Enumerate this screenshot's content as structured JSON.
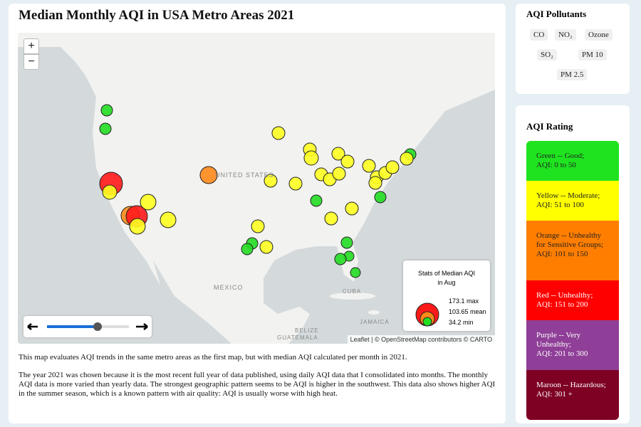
{
  "header": {
    "title": "Median Monthly AQI in USA Metro Areas 2021"
  },
  "map": {
    "zoom_in": "+",
    "zoom_out": "−",
    "labels": [
      "UNITED STATES",
      "MEXICO",
      "CUBA",
      "JAMAICA",
      "BELIZE",
      "GUATEMALA"
    ],
    "legend": {
      "title": "Stats of Median AQI in Aug",
      "items": [
        "173.1 max",
        "103.65 mean",
        "34.2 min"
      ]
    },
    "attribution": "Leaflet | © OpenStreetMap contributors © CARTO"
  },
  "description": [
    "This map evaluates AQI trends in the same metro areas as the first map, but with median AQI calculated per month in 2021.",
    "The year 2021 was chosen because it is the most recent full year of data published, using daily AQI data that I consolidated into months. The monthly AQI data is more varied than yearly data. The strongest geographic pattern seems to be AQI is higher in the southwest. This data also shows higher AQI in the summer season, which is a known pattern with air quality: AQI is usually worse with high heat."
  ],
  "pollutants": {
    "title": "AQI Pollutants",
    "items": [
      "CO",
      "NO₂",
      "Ozone",
      "SO₂",
      "PM 10",
      "PM 2.5"
    ]
  },
  "rating": {
    "title": "AQI Rating",
    "items": [
      "Green -- Good;\nAQI: 0 to 50",
      "Yellow -- Moderate;\nAQI: 51 to 100",
      "Orange -- Unhealthy for Sensitive Groups;\nAQI: 101 to 150",
      "Red -- Unhealthy;\nAQI: 151 to 200",
      "Purple -- Very Unhealthy;\nAQI: 201 to 300",
      "Maroon -- Hazardous;\nAQI: 301 +"
    ]
  }
}
